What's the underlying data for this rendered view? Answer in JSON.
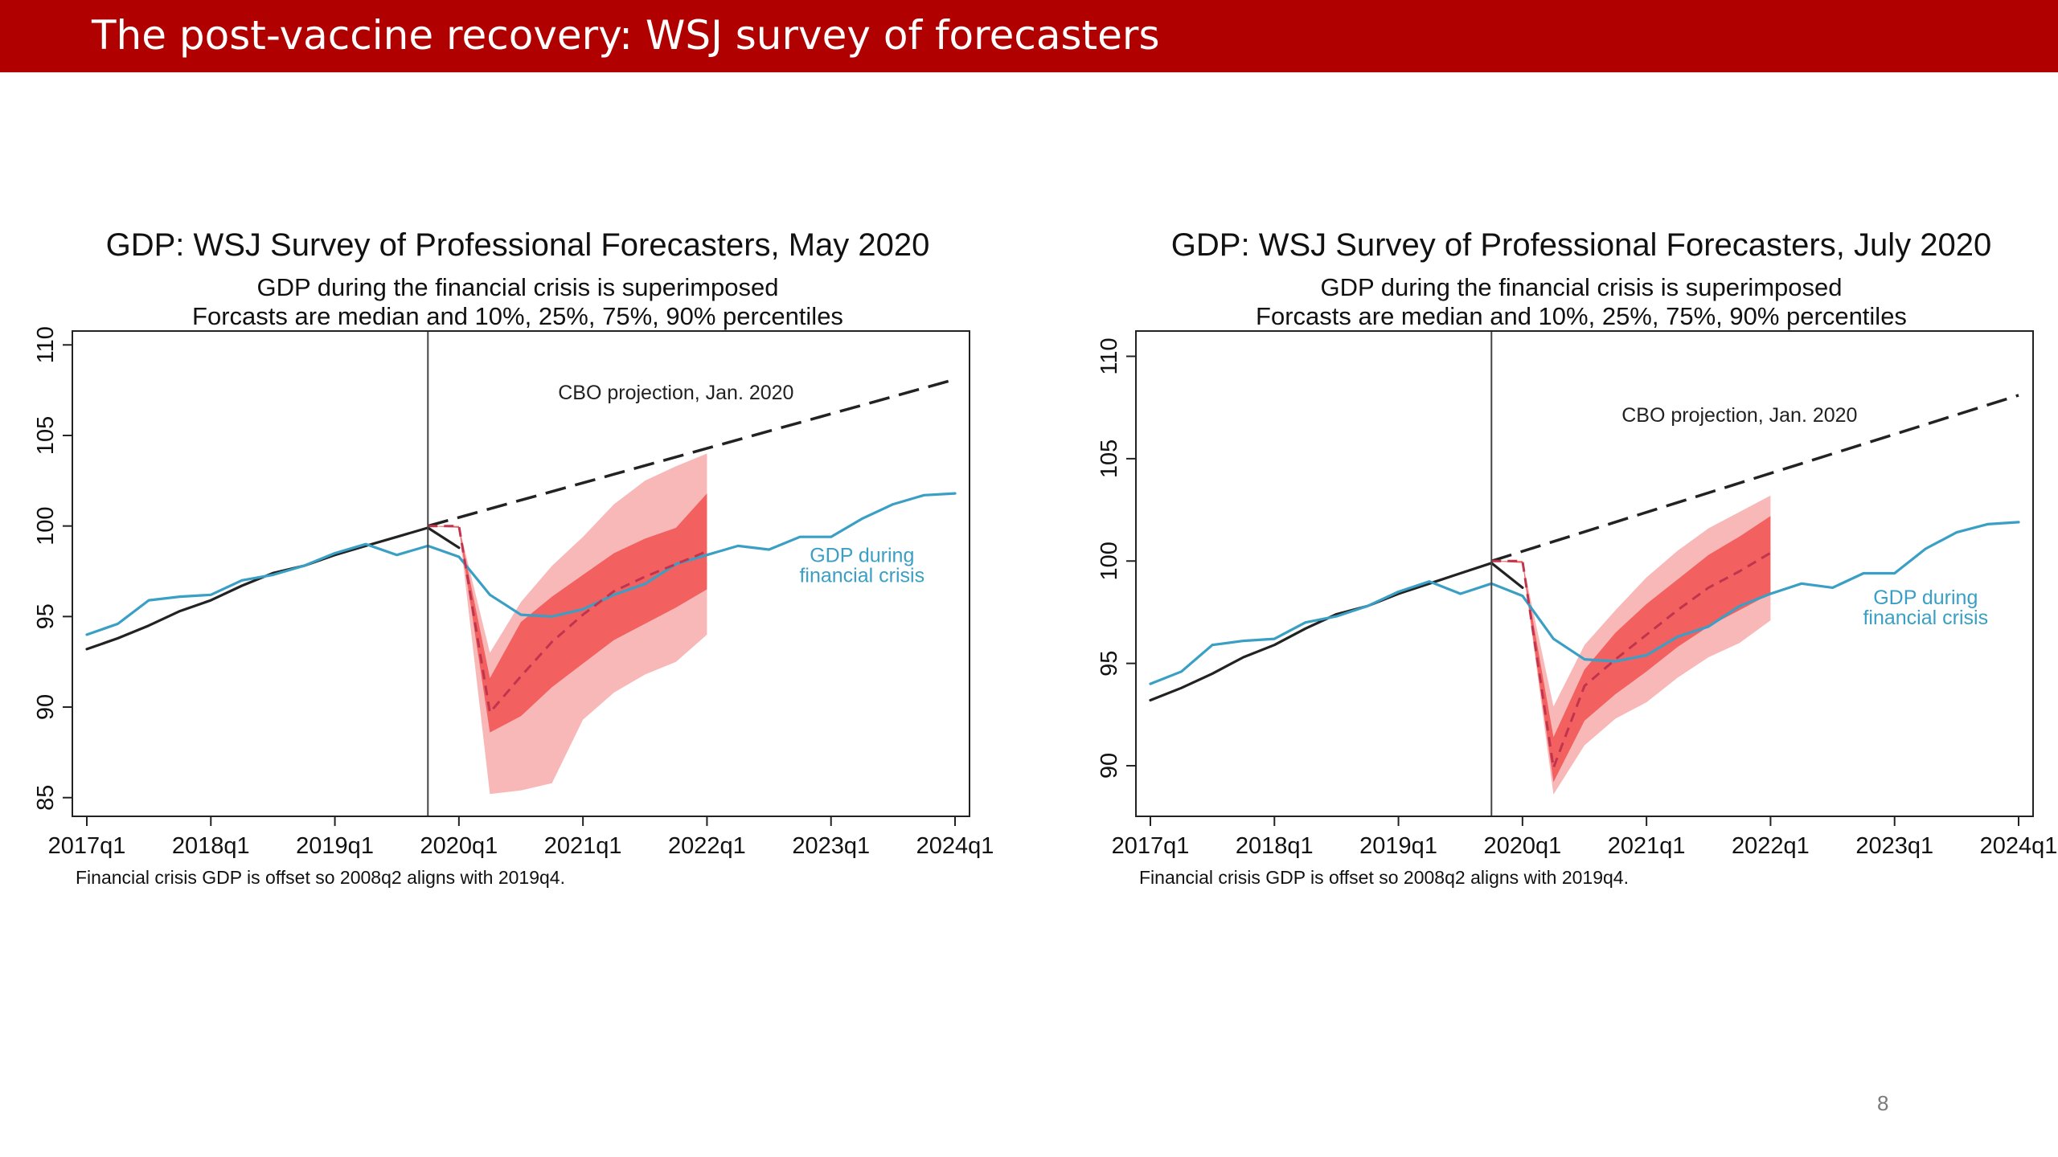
{
  "slide": {
    "title": "The post-vaccine recovery: WSJ survey of forecasters",
    "page_number": "8"
  },
  "chart_data": [
    {
      "type": "line",
      "title": "GDP: WSJ Survey of Professional Forecasters, May 2020",
      "subtitle_lines": [
        "GDP during the financial crisis is superimposed",
        "Forcasts are median and 10%, 25%, 75%, 90% percentiles"
      ],
      "note": "Financial crisis GDP is offset so 2008q2 aligns with 2019q4.",
      "xlabel": "",
      "ylabel": "",
      "x_ticks": [
        "2017q1",
        "2018q1",
        "2019q1",
        "2020q1",
        "2021q1",
        "2022q1",
        "2023q1",
        "2024q1"
      ],
      "y_ticks": [
        85,
        90,
        95,
        100,
        105,
        110
      ],
      "xlim": [
        "2017q1",
        "2024q1"
      ],
      "ylim": [
        84.5,
        110.5
      ],
      "vertical_line_at": "2019q4",
      "grid": false,
      "annotations": [
        {
          "text": "CBO projection, Jan. 2020",
          "x": "2021q4",
          "y": 107.0
        },
        {
          "text": "GDP during",
          "x": "2023q2",
          "y": 98.0
        },
        {
          "text": "financial crisis",
          "x": "2023q2",
          "y": 96.9
        }
      ],
      "series": [
        {
          "kind": "line",
          "color": "#222222",
          "x": [
            "2017q1",
            "2017q2",
            "2017q3",
            "2017q4",
            "2018q1",
            "2018q2",
            "2018q3",
            "2018q4",
            "2019q1",
            "2019q2",
            "2019q3",
            "2019q4",
            "2020q1"
          ],
          "values": [
            93.2,
            93.8,
            94.5,
            95.3,
            95.9,
            96.7,
            97.4,
            97.8,
            98.4,
            98.9,
            99.4,
            99.9,
            98.8
          ]
        },
        {
          "kind": "line",
          "color": "#3a9fc4",
          "x": [
            "2017q1",
            "2017q2",
            "2017q3",
            "2017q4",
            "2018q1",
            "2018q2",
            "2018q3",
            "2018q4",
            "2019q1",
            "2019q2",
            "2019q3",
            "2019q4",
            "2020q1",
            "2020q2",
            "2020q3",
            "2020q4",
            "2021q1",
            "2021q2",
            "2021q3",
            "2021q4",
            "2022q1",
            "2022q2",
            "2022q3",
            "2022q4",
            "2023q1",
            "2023q2",
            "2023q3",
            "2023q4",
            "2024q1"
          ],
          "values": [
            94.0,
            94.6,
            95.9,
            96.1,
            96.2,
            97.0,
            97.3,
            97.8,
            98.5,
            99.0,
            98.4,
            98.9,
            98.3,
            96.2,
            95.1,
            95.0,
            95.4,
            96.2,
            96.8,
            97.9,
            98.4,
            98.9,
            98.7,
            99.4,
            99.4,
            100.4,
            101.2,
            101.7,
            101.8
          ]
        },
        {
          "kind": "line",
          "dashed": true,
          "color": "#222222",
          "x": [
            "2019q4",
            "2024q1"
          ],
          "values": [
            100.0,
            108.1
          ]
        },
        {
          "kind": "band",
          "color": "#f8b8b8",
          "x": [
            "2019q4",
            "2020q1",
            "2020q2",
            "2020q3",
            "2020q4",
            "2021q1",
            "2021q2",
            "2021q3",
            "2021q4",
            "2022q1"
          ],
          "low": [
            100.0,
            99.9,
            85.2,
            85.4,
            85.8,
            89.3,
            90.8,
            91.8,
            92.5,
            94.0
          ],
          "high": [
            100.0,
            100.0,
            93.0,
            95.8,
            97.8,
            99.4,
            101.2,
            102.5,
            103.3,
            104.0
          ]
        },
        {
          "kind": "band",
          "color": "#f26060",
          "x": [
            "2019q4",
            "2020q1",
            "2020q2",
            "2020q3",
            "2020q4",
            "2021q1",
            "2021q2",
            "2021q3",
            "2021q4",
            "2022q1"
          ],
          "low": [
            100.0,
            99.9,
            88.6,
            89.5,
            91.1,
            92.4,
            93.7,
            94.6,
            95.5,
            96.5
          ],
          "high": [
            100.0,
            100.0,
            91.6,
            94.7,
            96.1,
            97.3,
            98.5,
            99.3,
            99.9,
            101.8
          ]
        },
        {
          "kind": "line",
          "dashed": true,
          "color": "#c0344e",
          "x": [
            "2019q4",
            "2020q1",
            "2020q2",
            "2020q3",
            "2020q4",
            "2021q1",
            "2021q2",
            "2021q3",
            "2021q4",
            "2022q1"
          ],
          "values": [
            100.0,
            100.0,
            89.7,
            91.7,
            93.6,
            95.1,
            96.4,
            97.2,
            97.9,
            98.6
          ]
        }
      ]
    },
    {
      "type": "line",
      "title": "GDP: WSJ Survey of Professional Forecasters, July 2020",
      "subtitle_lines": [
        "GDP during the financial crisis is superimposed",
        "Forcasts are median and 10%, 25%, 75%, 90% percentiles"
      ],
      "note": "Financial crisis GDP is offset so 2008q2 aligns with 2019q4.",
      "xlabel": "",
      "ylabel": "",
      "x_ticks": [
        "2017q1",
        "2018q1",
        "2019q1",
        "2020q1",
        "2021q1",
        "2022q1",
        "2023q1",
        "2024q1"
      ],
      "y_ticks": [
        90,
        95,
        100,
        105,
        110
      ],
      "xlim": [
        "2017q1",
        "2024q1"
      ],
      "ylim": [
        88.0,
        111.0
      ],
      "vertical_line_at": "2019q4",
      "grid": false,
      "annotations": [
        {
          "text": "CBO projection, Jan. 2020",
          "x": "2021q4",
          "y": 106.8
        },
        {
          "text": "GDP during",
          "x": "2023q2",
          "y": 97.9
        },
        {
          "text": "financial crisis",
          "x": "2023q2",
          "y": 96.9
        }
      ],
      "series": [
        {
          "kind": "line",
          "color": "#222222",
          "x": [
            "2017q1",
            "2017q2",
            "2017q3",
            "2017q4",
            "2018q1",
            "2018q2",
            "2018q3",
            "2018q4",
            "2019q1",
            "2019q2",
            "2019q3",
            "2019q4",
            "2020q1"
          ],
          "values": [
            93.2,
            93.8,
            94.5,
            95.3,
            95.9,
            96.7,
            97.4,
            97.8,
            98.4,
            98.9,
            99.4,
            99.9,
            98.7
          ]
        },
        {
          "kind": "line",
          "color": "#3a9fc4",
          "x": [
            "2017q1",
            "2017q2",
            "2017q3",
            "2017q4",
            "2018q1",
            "2018q2",
            "2018q3",
            "2018q4",
            "2019q1",
            "2019q2",
            "2019q3",
            "2019q4",
            "2020q1",
            "2020q2",
            "2020q3",
            "2020q4",
            "2021q1",
            "2021q2",
            "2021q3",
            "2021q4",
            "2022q1",
            "2022q2",
            "2022q3",
            "2022q4",
            "2023q1",
            "2023q2",
            "2023q3",
            "2023q4",
            "2024q1"
          ],
          "values": [
            94.0,
            94.6,
            95.9,
            96.1,
            96.2,
            97.0,
            97.3,
            97.8,
            98.5,
            99.0,
            98.4,
            98.9,
            98.3,
            96.2,
            95.2,
            95.1,
            95.4,
            96.3,
            96.8,
            97.8,
            98.4,
            98.9,
            98.7,
            99.4,
            99.4,
            100.6,
            101.4,
            101.8,
            101.9
          ]
        },
        {
          "kind": "line",
          "dashed": true,
          "color": "#222222",
          "x": [
            "2019q4",
            "2024q1"
          ],
          "values": [
            100.0,
            108.1
          ]
        },
        {
          "kind": "band",
          "color": "#f8b8b8",
          "x": [
            "2019q4",
            "2020q1",
            "2020q2",
            "2020q3",
            "2020q4",
            "2021q1",
            "2021q2",
            "2021q3",
            "2021q4",
            "2022q1"
          ],
          "low": [
            100.0,
            99.9,
            88.6,
            91.0,
            92.3,
            93.1,
            94.3,
            95.3,
            96.0,
            97.1
          ],
          "high": [
            100.0,
            100.0,
            92.9,
            95.9,
            97.6,
            99.2,
            100.5,
            101.6,
            102.4,
            103.2
          ]
        },
        {
          "kind": "band",
          "color": "#f26060",
          "x": [
            "2019q4",
            "2020q1",
            "2020q2",
            "2020q3",
            "2020q4",
            "2021q1",
            "2021q2",
            "2021q3",
            "2021q4",
            "2022q1"
          ],
          "low": [
            100.0,
            99.9,
            89.2,
            92.2,
            93.5,
            94.6,
            95.8,
            96.8,
            97.6,
            98.4
          ],
          "high": [
            100.0,
            100.0,
            91.4,
            94.7,
            96.5,
            97.9,
            99.1,
            100.3,
            101.2,
            102.2
          ]
        },
        {
          "kind": "line",
          "dashed": true,
          "color": "#c0344e",
          "x": [
            "2019q4",
            "2020q1",
            "2020q2",
            "2020q3",
            "2020q4",
            "2021q1",
            "2021q2",
            "2021q3",
            "2021q4",
            "2022q1"
          ],
          "values": [
            100.0,
            100.0,
            89.9,
            93.9,
            95.2,
            96.4,
            97.6,
            98.7,
            99.5,
            100.4
          ]
        }
      ]
    }
  ]
}
